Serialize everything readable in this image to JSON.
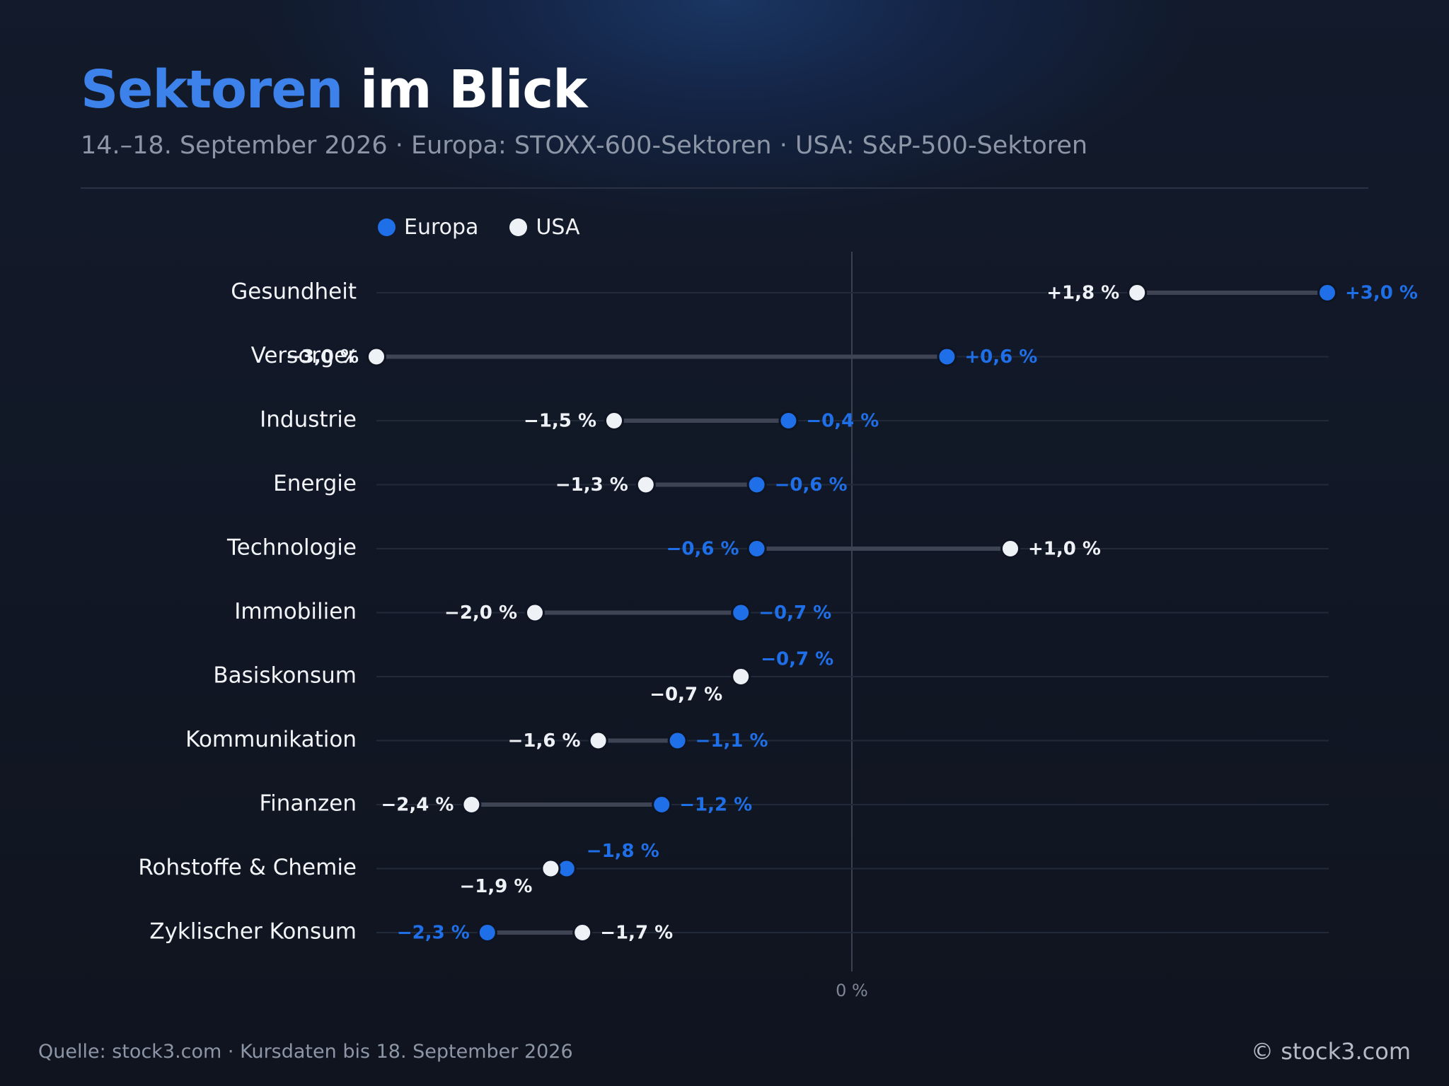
{
  "header": {
    "title_highlight": "Sektoren",
    "title_rest": " im Blick",
    "subtitle": "14.–18. September 2026 · Europa: STOXX-600-Sektoren · USA: S&P-500-Sektoren"
  },
  "legend": {
    "europe_label": "Europa",
    "usa_label": "USA"
  },
  "colors": {
    "europe": "#1f6fe8",
    "usa": "#eef1f6",
    "accent_title": "#3d82ea"
  },
  "chart_data": {
    "type": "dumbbell",
    "xlim": [
      -3.4,
      3.4
    ],
    "zero_label": "0 %",
    "grid": true,
    "legend_position": "top-left",
    "categories": [
      "Gesundheit",
      "Versorger",
      "Industrie",
      "Energie",
      "Technologie",
      "Immobilien",
      "Basiskonsum",
      "Kommunikation",
      "Finanzen",
      "Rohstoffe & Chemie",
      "Zyklischer Konsum"
    ],
    "series": [
      {
        "name": "Europa",
        "values": [
          3.0,
          0.6,
          -0.4,
          -0.6,
          -0.6,
          -0.7,
          -0.7,
          -1.1,
          -1.2,
          -1.8,
          -2.3
        ],
        "labels": [
          "+3,0 %",
          "+0,6 %",
          "−0,4 %",
          "−0,6 %",
          "−0,6 %",
          "−0,7 %",
          "−0,7 %",
          "−1,1 %",
          "−1,2 %",
          "−1,8 %",
          "−2,3 %"
        ]
      },
      {
        "name": "USA",
        "values": [
          1.8,
          -3.0,
          -1.5,
          -1.3,
          1.0,
          -2.0,
          -0.7,
          -1.6,
          -2.4,
          -1.9,
          -1.7
        ],
        "labels": [
          "+1,8 %",
          "−3,0 %",
          "−1,5 %",
          "−1,3 %",
          "+1,0 %",
          "−2,0 %",
          "−0,7 %",
          "−1,6 %",
          "−2,4 %",
          "−1,9 %",
          "−1,7 %"
        ]
      }
    ]
  },
  "footer": {
    "source": "Quelle: stock3.com · Kursdaten bis 18. September 2026",
    "copyright": "© stock3.com"
  }
}
